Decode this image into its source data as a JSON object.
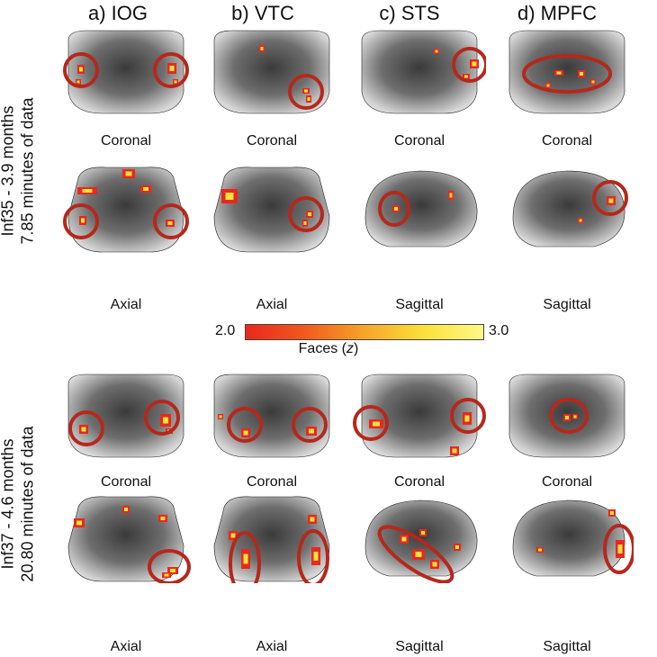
{
  "columns": [
    {
      "label": "a) IOG"
    },
    {
      "label": "b) VTC"
    },
    {
      "label": "c) STS"
    },
    {
      "label": "d) MPFC"
    }
  ],
  "subjects": [
    {
      "line1": "Inf35 - 3.9 months",
      "line2": "7.85 minutes of data"
    },
    {
      "line1": "Inf37 - 4.6 months",
      "line2": "20.80 minutes of data"
    }
  ],
  "rows": [
    {
      "views": [
        "Coronal",
        "Coronal",
        "Coronal",
        "Coronal"
      ]
    },
    {
      "views": [
        "Axial",
        "Axial",
        "Sagittal",
        "Sagittal"
      ]
    },
    {
      "views": [
        "Coronal",
        "Coronal",
        "Coronal",
        "Coronal"
      ]
    },
    {
      "views": [
        "Axial",
        "Axial",
        "Sagittal",
        "Sagittal"
      ]
    }
  ],
  "colorbar": {
    "min": "2.0",
    "max": "3.0",
    "label_prefix": "Faces (",
    "label_var": "z",
    "label_suffix": ")",
    "colors": [
      "#e8281e",
      "#fbe13a",
      "#fff88a"
    ]
  },
  "roi_circle_color": "#b5281c"
}
